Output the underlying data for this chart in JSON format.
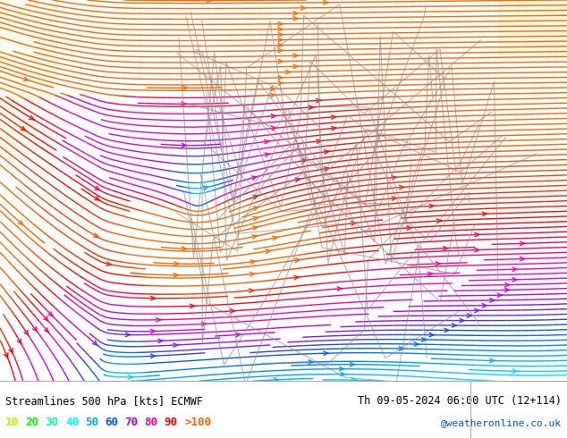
{
  "title_left": "Streamlines 500 hPa [kts] ECMWF",
  "title_right": "Th 09-05-2024 06:00 UTC (12+114)",
  "watermark": "@weatheronline.co.uk",
  "legend_values": [
    "10",
    "20",
    "30",
    "40",
    "50",
    "60",
    "70",
    "80",
    "90",
    ">100"
  ],
  "legend_colors": [
    "#aaff00",
    "#00ff00",
    "#00ffaa",
    "#00ffff",
    "#00aaff",
    "#0055ff",
    "#aa00ff",
    "#ff00aa",
    "#ff0000",
    "#ff6600"
  ],
  "background_color": "#ccff99",
  "fig_width": 6.34,
  "fig_height": 4.9,
  "dpi": 100,
  "border_color": "#aaaaaa",
  "text_color": "#000000",
  "bottom_bar_color": "#ffffff",
  "streamline_density": 2.5,
  "colormap_speeds": [
    0,
    10,
    20,
    30,
    40,
    50,
    60,
    70,
    80,
    90,
    100,
    150
  ],
  "colormap_colors": [
    "#aaff00",
    "#aaff00",
    "#00ff00",
    "#00ffaa",
    "#00ffff",
    "#00aaff",
    "#0055ff",
    "#aa00ff",
    "#ff00aa",
    "#ff0000",
    "#ff6600",
    "#ff6600"
  ]
}
